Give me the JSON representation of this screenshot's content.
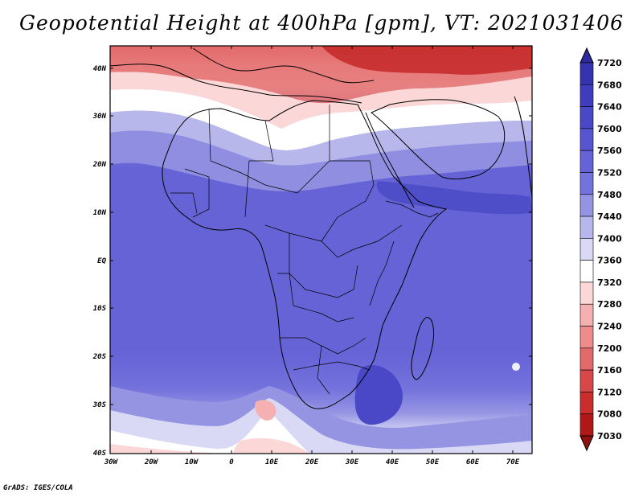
{
  "title": "Geopotential Height at 400hPa [gpm], VT: 2021031406",
  "credit": "GrADS: IGES/COLA",
  "lat_labels": [
    "40N",
    "30N",
    "20N",
    "10N",
    "EQ",
    "10S",
    "20S",
    "30S",
    "40S"
  ],
  "lon_labels": [
    "30W",
    "20W",
    "10W",
    "0",
    "10E",
    "20E",
    "30E",
    "40E",
    "50E",
    "60E",
    "70E"
  ],
  "colorbar": {
    "levels": [
      "7720",
      "7680",
      "7640",
      "7600",
      "7560",
      "7520",
      "7480",
      "7440",
      "7400",
      "7360",
      "7320",
      "7280",
      "7240",
      "7200",
      "7160",
      "7120",
      "7080",
      "7030"
    ],
    "colors": [
      "#2c2a9e",
      "#3533b0",
      "#3f3dbd",
      "#4a48c6",
      "#5755cf",
      "#6563d6",
      "#7472dc",
      "#9594e3",
      "#b8b7ec",
      "#d9d9f6",
      "#ffffff",
      "#fbd7d7",
      "#f5b1b1",
      "#ee8c8c",
      "#e36a6a",
      "#d84848",
      "#c92d2d",
      "#b01818",
      "#8f1010"
    ]
  },
  "map": {
    "lon_range": [
      -30,
      75
    ],
    "lat_range": [
      -40,
      45
    ],
    "region": "Africa",
    "colors": {
      "high": "#4a48c6",
      "low": "#c62828",
      "neutral": "#ffffff"
    }
  }
}
